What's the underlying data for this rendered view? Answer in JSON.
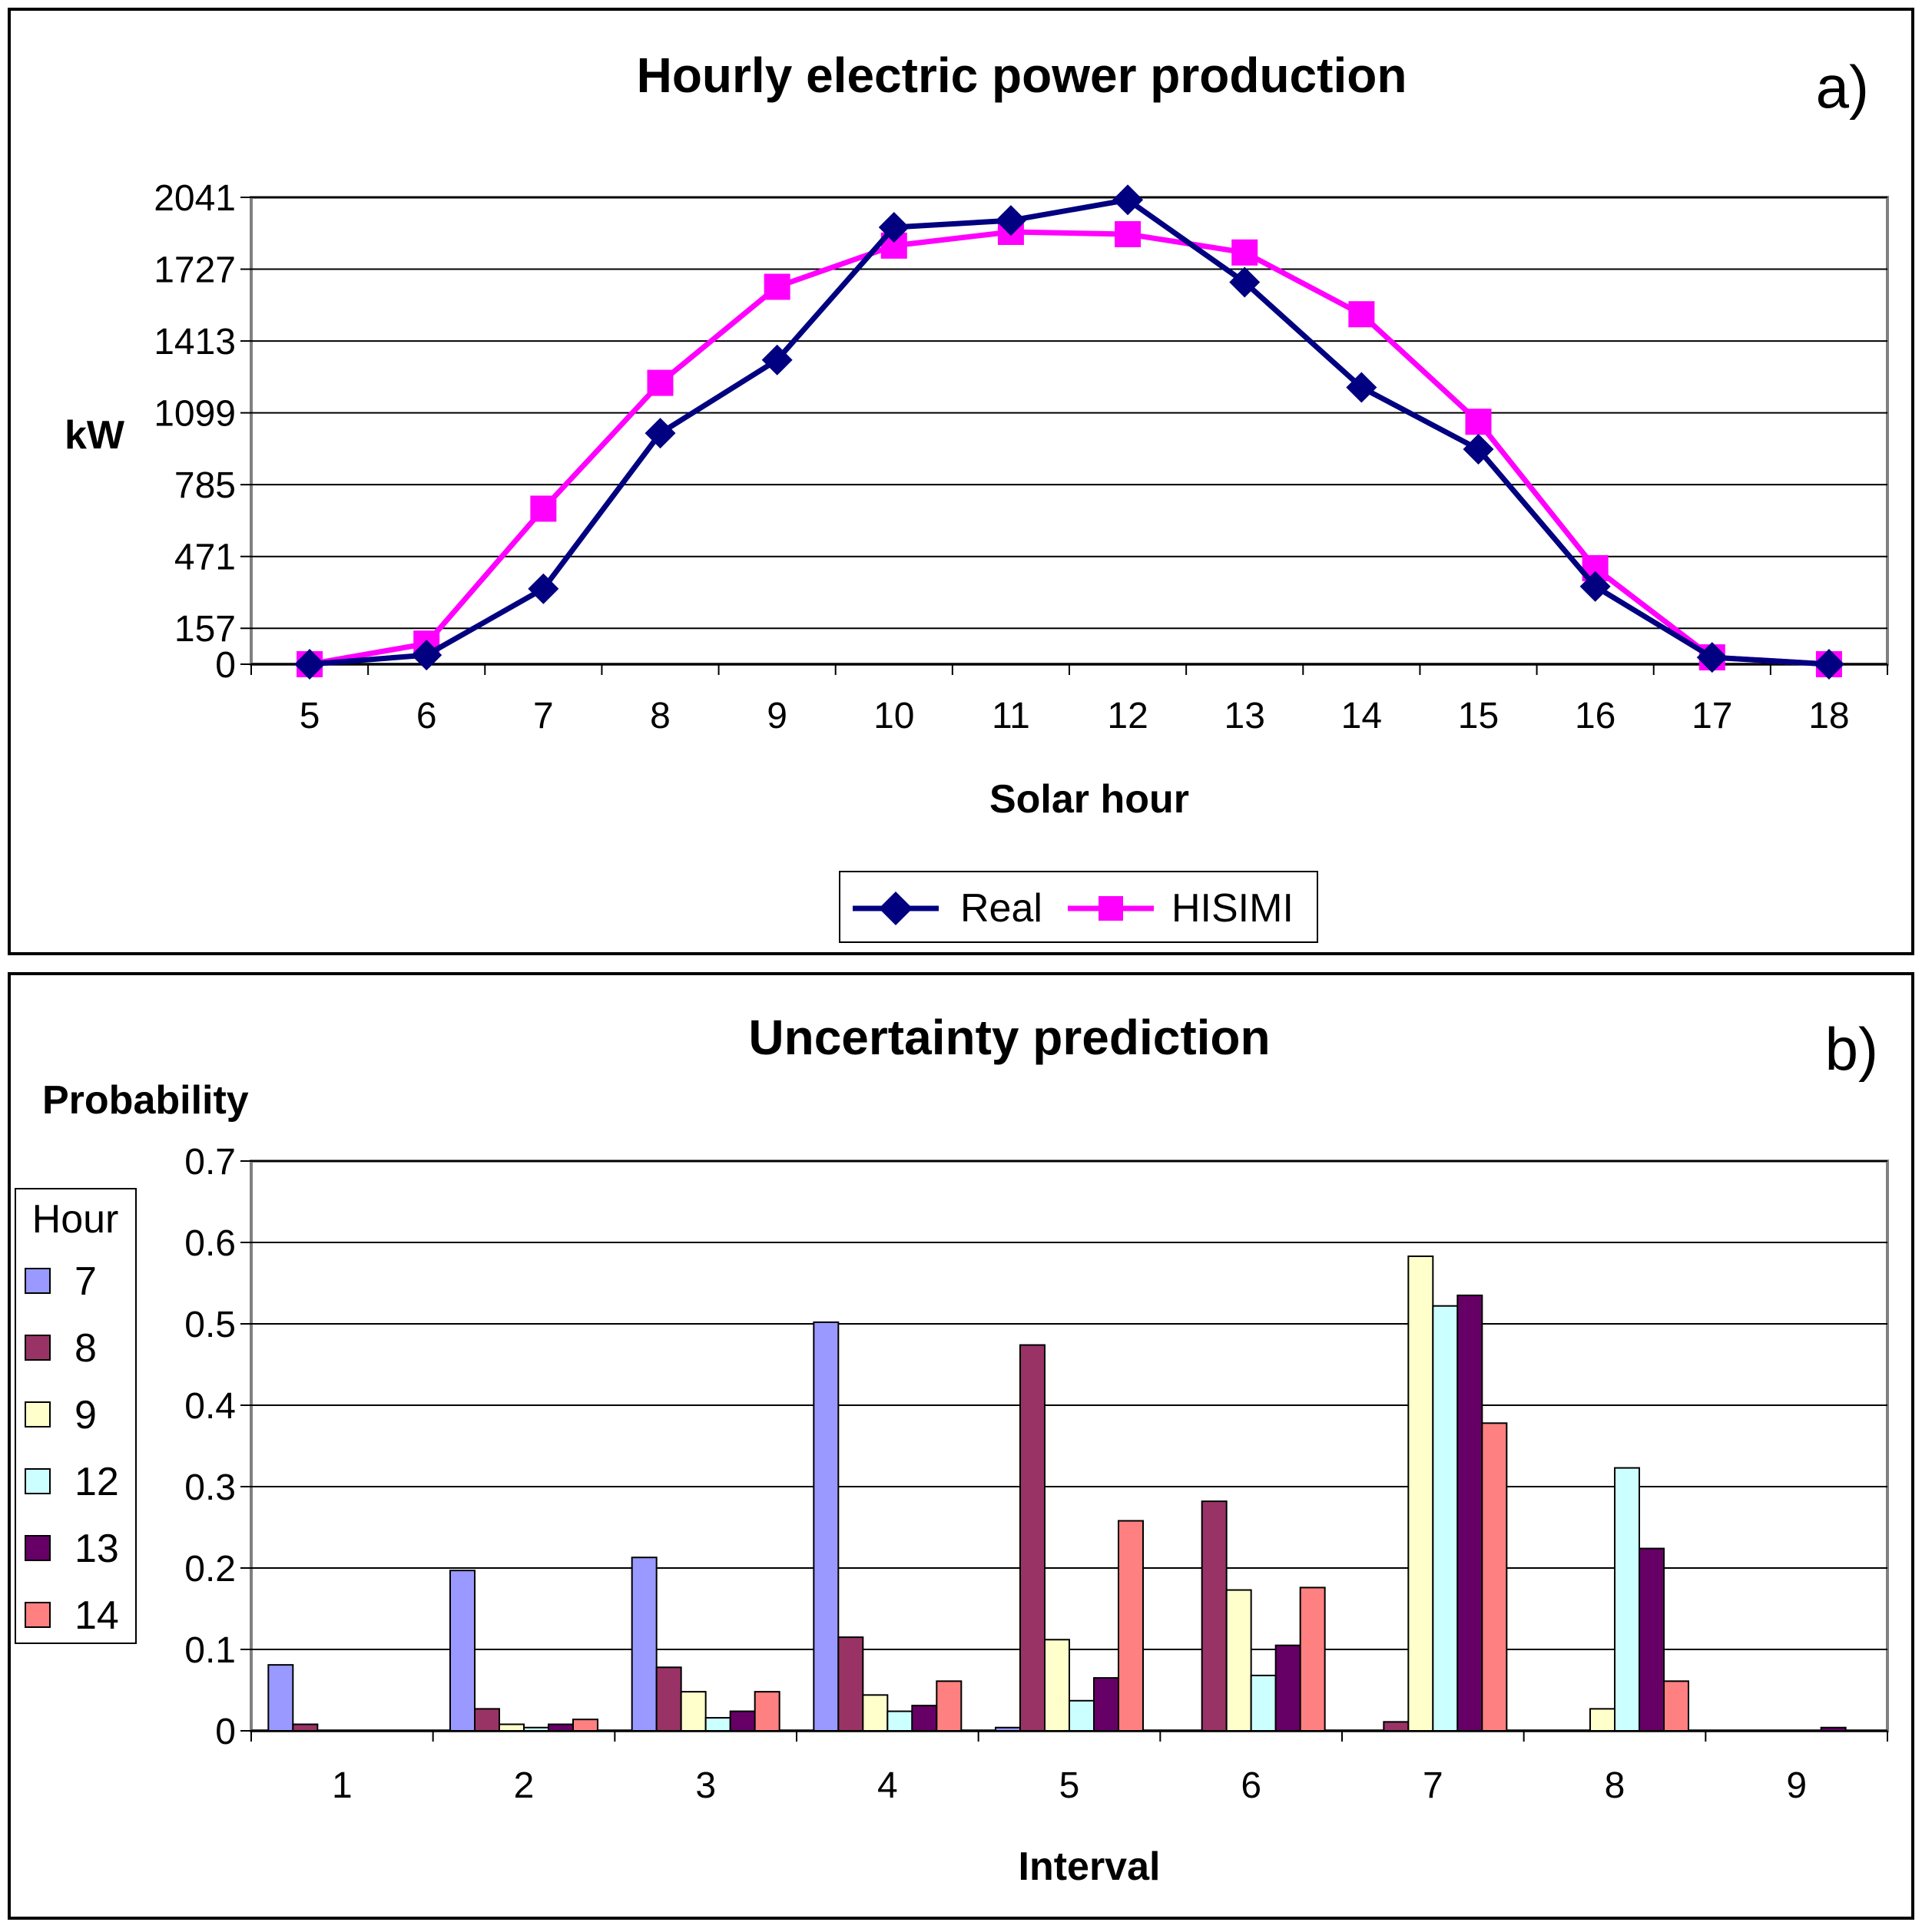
{
  "chart_data": [
    {
      "type": "line",
      "title": "Hourly electric power production",
      "panel_label": "a)",
      "xlabel": "Solar hour",
      "ylabel": "kW",
      "ylim": [
        0,
        2041
      ],
      "yticks": [
        0,
        157,
        471,
        785,
        1099,
        1413,
        1727,
        2041
      ],
      "grid": true,
      "legend_position": "bottom-center",
      "categories": [
        5,
        6,
        7,
        8,
        9,
        10,
        11,
        12,
        13,
        14,
        15,
        16,
        17,
        18
      ],
      "series": [
        {
          "name": "Real",
          "color": "#000080",
          "marker": "diamond",
          "values": [
            0,
            40,
            330,
            1010,
            1330,
            1910,
            1940,
            2030,
            1670,
            1210,
            940,
            340,
            30,
            0
          ]
        },
        {
          "name": "HISIMI",
          "color": "#FF00FF",
          "marker": "square",
          "values": [
            0,
            90,
            680,
            1230,
            1650,
            1830,
            1890,
            1880,
            1800,
            1530,
            1060,
            420,
            30,
            0
          ]
        }
      ]
    },
    {
      "type": "bar",
      "title": "Uncertainty prediction",
      "panel_label": "b)",
      "xlabel": "Interval",
      "ylabel": "Probability",
      "ylim": [
        0,
        0.7
      ],
      "yticks": [
        "0",
        "0.1",
        "0.2",
        "0.3",
        "0.4",
        "0.5",
        "0.6",
        "0.7"
      ],
      "grid": true,
      "legend_title": "Hour",
      "legend_position": "left",
      "categories": [
        "1",
        "2",
        "3",
        "4",
        "5",
        "6",
        "7",
        "8",
        "9"
      ],
      "series": [
        {
          "name": "7",
          "color": "#9999FF",
          "values": [
            0.081,
            0.197,
            0.213,
            0.502,
            0.004,
            0,
            0,
            0,
            0
          ]
        },
        {
          "name": "8",
          "color": "#993366",
          "values": [
            0.008,
            0.027,
            0.078,
            0.115,
            0.474,
            0.282,
            0.011,
            0,
            0
          ]
        },
        {
          "name": "9",
          "color": "#FFFFCC",
          "values": [
            0,
            0.008,
            0.048,
            0.044,
            0.112,
            0.173,
            0.583,
            0.027,
            0
          ]
        },
        {
          "name": "12",
          "color": "#CCFFFF",
          "values": [
            0,
            0.004,
            0.016,
            0.024,
            0.037,
            0.068,
            0.522,
            0.323,
            0
          ]
        },
        {
          "name": "13",
          "color": "#660066",
          "values": [
            0,
            0.008,
            0.024,
            0.031,
            0.065,
            0.105,
            0.535,
            0.224,
            0.004
          ]
        },
        {
          "name": "14",
          "color": "#FF8080",
          "values": [
            0,
            0.014,
            0.048,
            0.061,
            0.258,
            0.176,
            0.378,
            0.061,
            0
          ]
        }
      ]
    }
  ]
}
